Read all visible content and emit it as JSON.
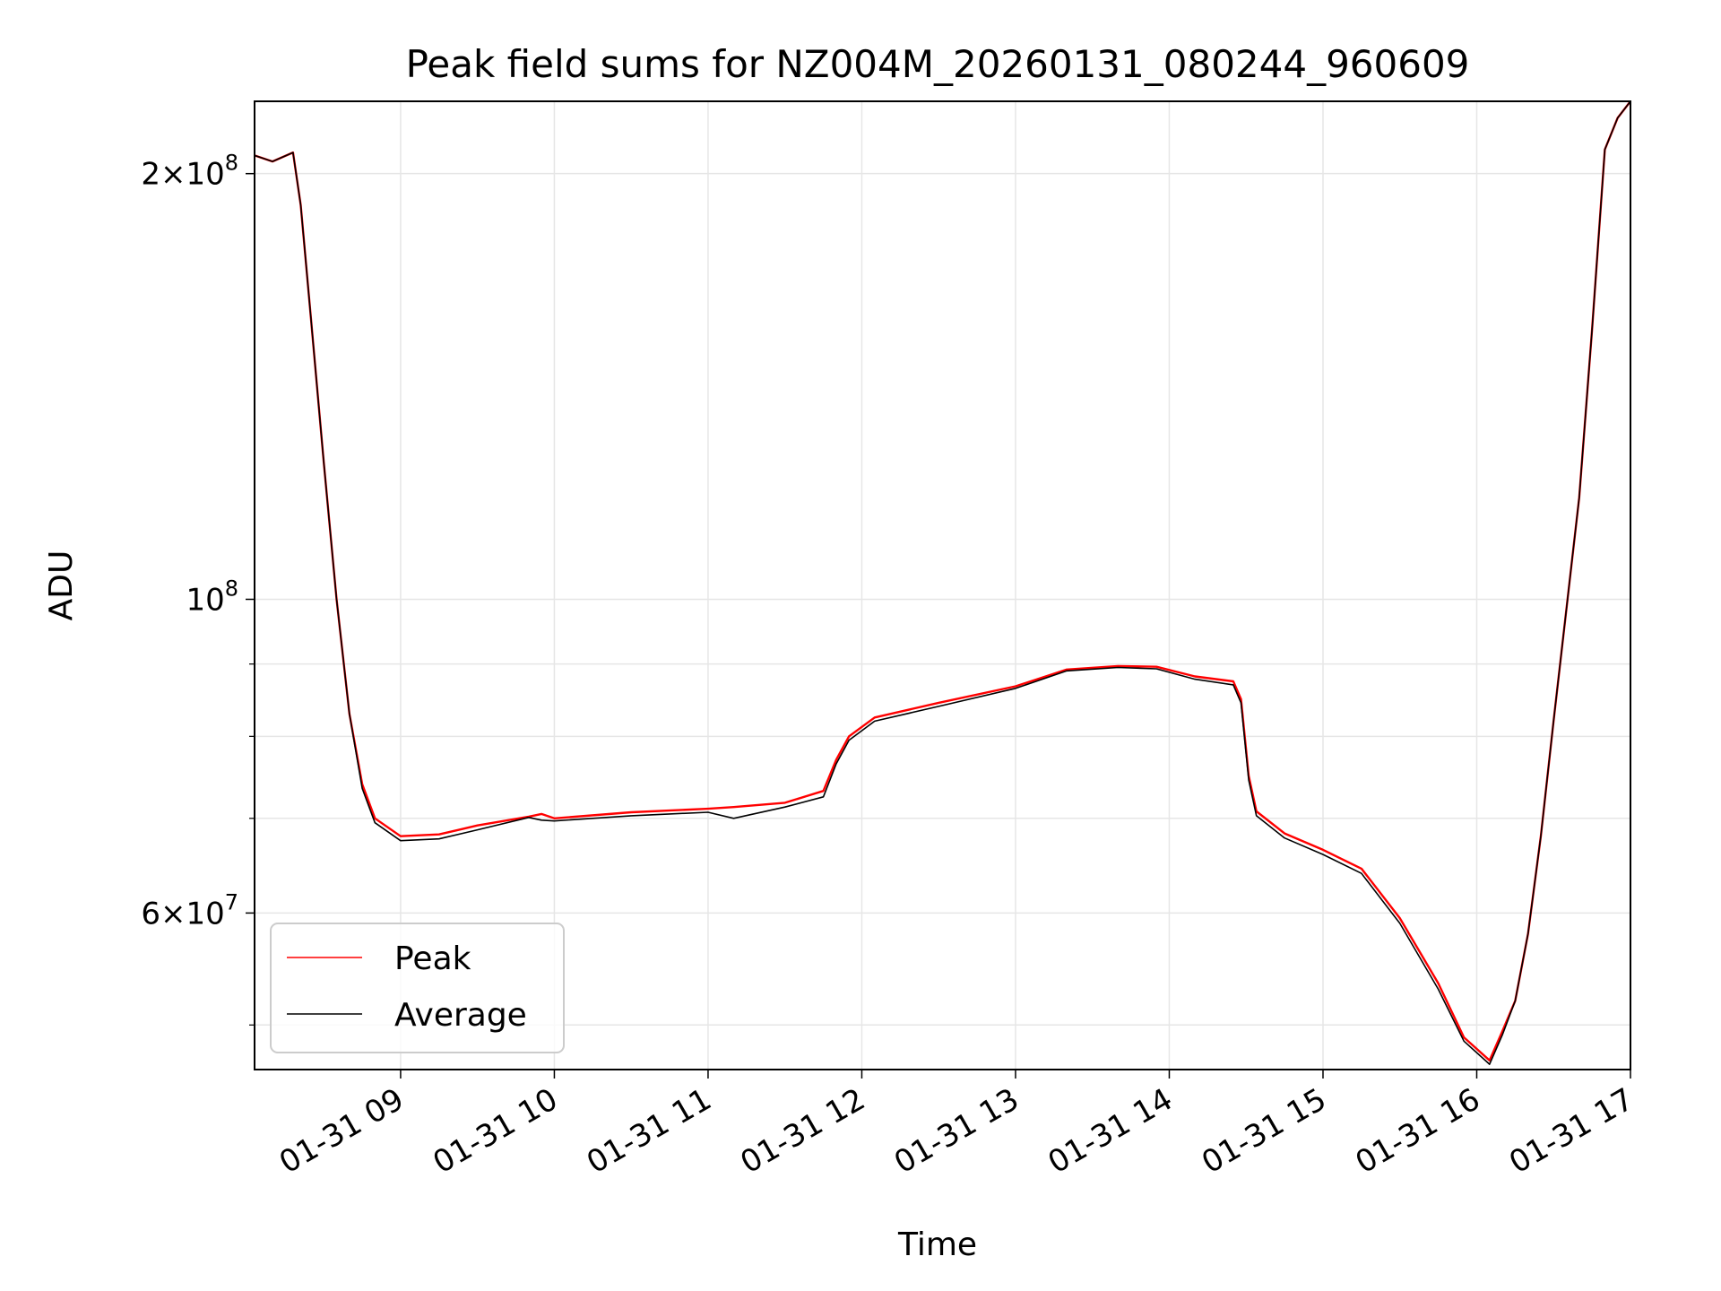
{
  "chart_data": {
    "type": "line",
    "title": "Peak field sums for NZ004M_20260131_080244_960609",
    "xlabel": "Time",
    "ylabel": "ADU",
    "x_scale": "time",
    "y_scale": "log",
    "xlim": [
      "2026-01-31 08:03",
      "2026-01-31 17:00"
    ],
    "ylim": [
      46500000,
      225000000
    ],
    "grid": true,
    "grid_color": "#e6e6e6",
    "legend_position": "lower-left",
    "x_ticks": [
      {
        "value": "2026-01-31 09:00",
        "label": "01-31 09"
      },
      {
        "value": "2026-01-31 10:00",
        "label": "01-31 10"
      },
      {
        "value": "2026-01-31 11:00",
        "label": "01-31 11"
      },
      {
        "value": "2026-01-31 12:00",
        "label": "01-31 12"
      },
      {
        "value": "2026-01-31 13:00",
        "label": "01-31 13"
      },
      {
        "value": "2026-01-31 14:00",
        "label": "01-31 14"
      },
      {
        "value": "2026-01-31 15:00",
        "label": "01-31 15"
      },
      {
        "value": "2026-01-31 16:00",
        "label": "01-31 16"
      },
      {
        "value": "2026-01-31 17:00",
        "label": "01-31 17"
      }
    ],
    "y_major_ticks": [
      {
        "value": 60000000,
        "mantissa": "6",
        "exponent": "7"
      },
      {
        "value": 100000000,
        "mantissa": "",
        "exponent": "8"
      },
      {
        "value": 200000000,
        "mantissa": "2",
        "exponent": "8"
      }
    ],
    "y_minor_ticks": [
      50000000,
      70000000,
      80000000,
      90000000
    ],
    "series": [
      {
        "name": "Peak",
        "color": "#ff0000",
        "x": [
          "2026-01-31 08:03",
          "2026-01-31 08:10",
          "2026-01-31 08:18",
          "2026-01-31 08:21",
          "2026-01-31 08:25",
          "2026-01-31 08:30",
          "2026-01-31 08:35",
          "2026-01-31 08:40",
          "2026-01-31 08:45",
          "2026-01-31 08:50",
          "2026-01-31 09:00",
          "2026-01-31 09:15",
          "2026-01-31 09:30",
          "2026-01-31 09:50",
          "2026-01-31 09:55",
          "2026-01-31 10:00",
          "2026-01-31 10:30",
          "2026-01-31 11:00",
          "2026-01-31 11:10",
          "2026-01-31 11:30",
          "2026-01-31 11:45",
          "2026-01-31 11:50",
          "2026-01-31 11:55",
          "2026-01-31 12:05",
          "2026-01-31 12:30",
          "2026-01-31 13:00",
          "2026-01-31 13:20",
          "2026-01-31 13:40",
          "2026-01-31 13:55",
          "2026-01-31 14:10",
          "2026-01-31 14:25",
          "2026-01-31 14:28",
          "2026-01-31 14:31",
          "2026-01-31 14:34",
          "2026-01-31 14:45",
          "2026-01-31 15:00",
          "2026-01-31 15:15",
          "2026-01-31 15:30",
          "2026-01-31 15:45",
          "2026-01-31 15:55",
          "2026-01-31 16:05",
          "2026-01-31 16:10",
          "2026-01-31 16:15",
          "2026-01-31 16:20",
          "2026-01-31 16:25",
          "2026-01-31 16:30",
          "2026-01-31 16:40",
          "2026-01-31 16:45",
          "2026-01-31 16:50",
          "2026-01-31 16:55",
          "2026-01-31 17:00"
        ],
        "y": [
          206000000,
          204000000,
          207000000,
          190000000,
          158000000,
          125000000,
          100000000,
          83000000,
          74000000,
          70000000,
          68000000,
          68200000,
          69200000,
          70200000,
          70500000,
          70000000,
          70700000,
          71100000,
          71300000,
          71800000,
          73200000,
          77000000,
          80000000,
          82500000,
          84500000,
          86800000,
          89200000,
          89700000,
          89600000,
          88200000,
          87500000,
          85000000,
          75000000,
          70800000,
          68300000,
          66500000,
          64500000,
          59500000,
          53500000,
          49000000,
          47200000,
          49500000,
          52000000,
          58000000,
          68000000,
          82000000,
          118000000,
          155000000,
          208000000,
          219000000,
          225000000
        ]
      },
      {
        "name": "Average",
        "color": "#000000",
        "x": [
          "2026-01-31 08:03",
          "2026-01-31 08:10",
          "2026-01-31 08:18",
          "2026-01-31 08:21",
          "2026-01-31 08:25",
          "2026-01-31 08:30",
          "2026-01-31 08:35",
          "2026-01-31 08:40",
          "2026-01-31 08:45",
          "2026-01-31 08:50",
          "2026-01-31 09:00",
          "2026-01-31 09:15",
          "2026-01-31 09:30",
          "2026-01-31 09:50",
          "2026-01-31 09:55",
          "2026-01-31 10:00",
          "2026-01-31 10:30",
          "2026-01-31 11:00",
          "2026-01-31 11:10",
          "2026-01-31 11:30",
          "2026-01-31 11:45",
          "2026-01-31 11:50",
          "2026-01-31 11:55",
          "2026-01-31 12:05",
          "2026-01-31 12:30",
          "2026-01-31 13:00",
          "2026-01-31 13:20",
          "2026-01-31 13:40",
          "2026-01-31 13:55",
          "2026-01-31 14:10",
          "2026-01-31 14:25",
          "2026-01-31 14:28",
          "2026-01-31 14:31",
          "2026-01-31 14:34",
          "2026-01-31 14:45",
          "2026-01-31 15:00",
          "2026-01-31 15:15",
          "2026-01-31 15:30",
          "2026-01-31 15:45",
          "2026-01-31 15:55",
          "2026-01-31 16:05",
          "2026-01-31 16:10",
          "2026-01-31 16:15",
          "2026-01-31 16:20",
          "2026-01-31 16:25",
          "2026-01-31 16:30",
          "2026-01-31 16:40",
          "2026-01-31 16:45",
          "2026-01-31 16:50",
          "2026-01-31 16:55",
          "2026-01-31 17:00"
        ],
        "y": [
          206000000,
          204000000,
          207000000,
          190000000,
          158000000,
          125000000,
          100000000,
          83000000,
          73500000,
          69500000,
          67500000,
          67700000,
          68700000,
          70100000,
          69800000,
          69700000,
          70300000,
          70700000,
          70000000,
          71300000,
          72500000,
          76500000,
          79500000,
          82000000,
          84000000,
          86500000,
          89000000,
          89500000,
          89300000,
          87800000,
          87000000,
          84500000,
          74500000,
          70300000,
          67800000,
          66000000,
          64000000,
          59000000,
          53000000,
          48700000,
          46900000,
          49200000,
          52000000,
          58000000,
          68000000,
          82000000,
          118000000,
          155000000,
          208000000,
          219000000,
          225000000
        ]
      }
    ]
  }
}
